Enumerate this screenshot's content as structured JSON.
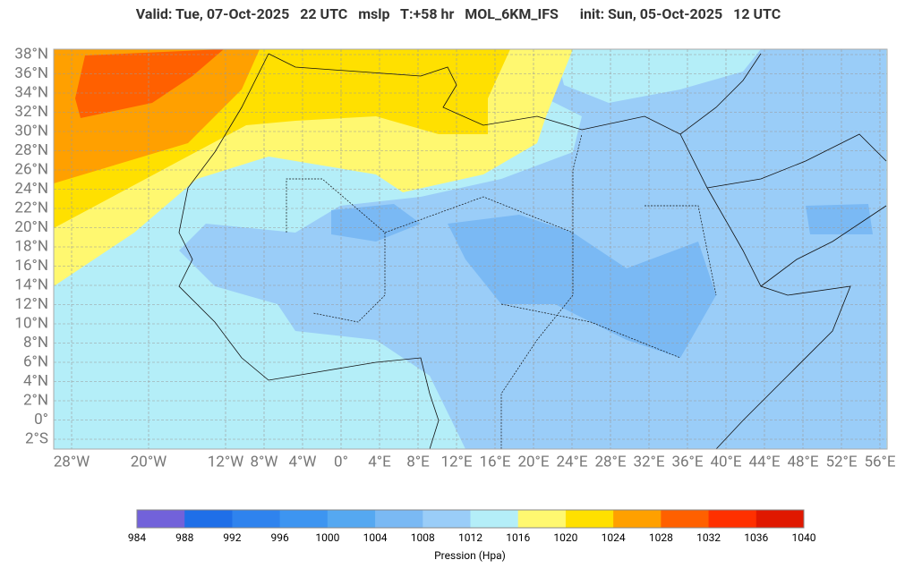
{
  "header": {
    "title": "Valid: Tue, 07-Oct-2025   22 UTC   mslp   T:+58 hr   MOL_6KM_IFS      init: Sun, 05-Oct-2025   12 UTC"
  },
  "map": {
    "lat_ticks": [
      {
        "value": 38,
        "label": "38°N"
      },
      {
        "value": 36,
        "label": "36°N"
      },
      {
        "value": 34,
        "label": "34°N"
      },
      {
        "value": 32,
        "label": "32°N"
      },
      {
        "value": 30,
        "label": "30°N"
      },
      {
        "value": 28,
        "label": "28°N"
      },
      {
        "value": 26,
        "label": "26°N"
      },
      {
        "value": 24,
        "label": "24°N"
      },
      {
        "value": 22,
        "label": "22°N"
      },
      {
        "value": 20,
        "label": "20°N"
      },
      {
        "value": 18,
        "label": "18°N"
      },
      {
        "value": 16,
        "label": "16°N"
      },
      {
        "value": 14,
        "label": "14°N"
      },
      {
        "value": 12,
        "label": "12°N"
      },
      {
        "value": 10,
        "label": "10°N"
      },
      {
        "value": 8,
        "label": "8°N"
      },
      {
        "value": 6,
        "label": "6°N"
      },
      {
        "value": 4,
        "label": "4°N"
      },
      {
        "value": 2,
        "label": "2°N"
      },
      {
        "value": 0,
        "label": "0°"
      },
      {
        "value": -2,
        "label": "2°S"
      }
    ],
    "lon_ticks": [
      {
        "value": -28,
        "label": "28°W"
      },
      {
        "value": -20,
        "label": "20°W"
      },
      {
        "value": -12,
        "label": "12°W"
      },
      {
        "value": -8,
        "label": "8°W"
      },
      {
        "value": -4,
        "label": "4°W"
      },
      {
        "value": 0,
        "label": "0°"
      },
      {
        "value": 4,
        "label": "4°E"
      },
      {
        "value": 8,
        "label": "8°E"
      },
      {
        "value": 12,
        "label": "12°E"
      },
      {
        "value": 16,
        "label": "16°E"
      },
      {
        "value": 20,
        "label": "20°E"
      },
      {
        "value": 24,
        "label": "24°E"
      },
      {
        "value": 28,
        "label": "28°E"
      },
      {
        "value": 32,
        "label": "32°E"
      },
      {
        "value": 36,
        "label": "36°E"
      },
      {
        "value": 40,
        "label": "40°E"
      },
      {
        "value": 44,
        "label": "44°E"
      },
      {
        "value": 48,
        "label": "48°E"
      },
      {
        "value": 52,
        "label": "52°E"
      },
      {
        "value": 56,
        "label": "56°E"
      }
    ]
  },
  "colorbar": {
    "levels": [
      984,
      988,
      992,
      996,
      1000,
      1004,
      1008,
      1012,
      1016,
      1020,
      1024,
      1028,
      1032,
      1036,
      1040
    ],
    "colors": [
      "#7262da",
      "#1f6fe8",
      "#2f83ee",
      "#3d95f1",
      "#55a8f1",
      "#7ab9f4",
      "#9acdf8",
      "#b4eef8",
      "#fff870",
      "#ffe000",
      "#ffa000",
      "#ff6000",
      "#ff3000",
      "#e01800"
    ],
    "label": "Pression (Hpa)"
  }
}
